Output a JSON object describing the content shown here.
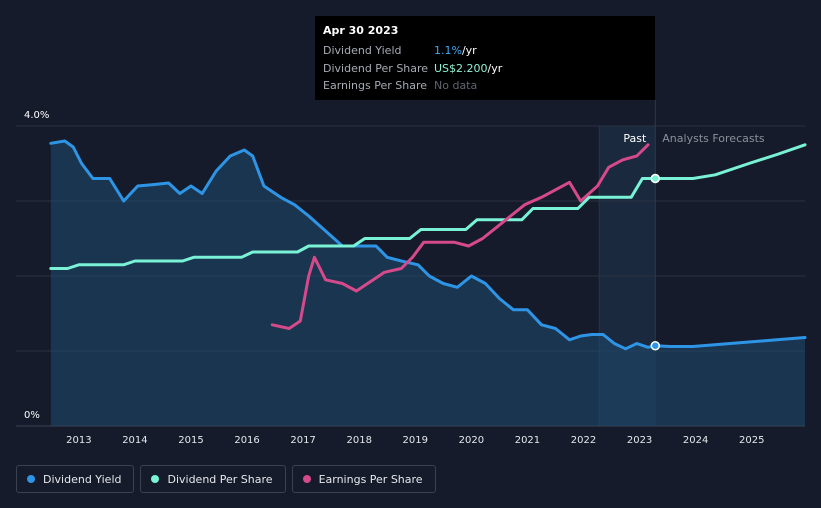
{
  "tooltip": {
    "date": "Apr 30 2023",
    "rows": [
      {
        "label": "Dividend Yield",
        "value": "1.1%",
        "unit": " /yr",
        "color": "#3fa9f5"
      },
      {
        "label": "Dividend Per Share",
        "value": "US$2.200",
        "unit": " /yr",
        "color": "#8ff0d4"
      },
      {
        "label": "Earnings Per Share",
        "value": "No data",
        "unit": "",
        "color": "#5f6470"
      }
    ]
  },
  "legend": [
    {
      "label": "Dividend Yield",
      "color": "#2e95e6"
    },
    {
      "label": "Dividend Per Share",
      "color": "#79f2d6"
    },
    {
      "label": "Earnings Per Share",
      "color": "#d6498a"
    }
  ],
  "chart_data": {
    "type": "line",
    "title": "",
    "xlabel": "",
    "ylabel": "",
    "x_range": [
      2012.5,
      2026.0
    ],
    "ylim": [
      0,
      4.0
    ],
    "y_tick_labels": [
      "0%",
      "4.0%"
    ],
    "x_ticks": [
      2013,
      2014,
      2015,
      2016,
      2017,
      2018,
      2019,
      2020,
      2021,
      2022,
      2023,
      2024,
      2025
    ],
    "past_label": "Past",
    "forecast_label": "Analysts Forecasts",
    "forecast_start": 2023.33,
    "past_band_start": 2022.33,
    "series": [
      {
        "name": "Dividend Yield",
        "color": "#2e95e6",
        "points": [
          [
            2012.55,
            3.77
          ],
          [
            2012.8,
            3.8
          ],
          [
            2012.95,
            3.72
          ],
          [
            2013.1,
            3.5
          ],
          [
            2013.3,
            3.3
          ],
          [
            2013.6,
            3.3
          ],
          [
            2013.85,
            3.0
          ],
          [
            2014.1,
            3.2
          ],
          [
            2014.4,
            3.22
          ],
          [
            2014.65,
            3.24
          ],
          [
            2014.85,
            3.1
          ],
          [
            2015.05,
            3.2
          ],
          [
            2015.25,
            3.1
          ],
          [
            2015.5,
            3.4
          ],
          [
            2015.75,
            3.6
          ],
          [
            2016.0,
            3.68
          ],
          [
            2016.15,
            3.6
          ],
          [
            2016.35,
            3.2
          ],
          [
            2016.65,
            3.05
          ],
          [
            2016.9,
            2.95
          ],
          [
            2017.15,
            2.8
          ],
          [
            2017.45,
            2.6
          ],
          [
            2017.75,
            2.4
          ],
          [
            2018.05,
            2.4
          ],
          [
            2018.35,
            2.4
          ],
          [
            2018.55,
            2.25
          ],
          [
            2018.8,
            2.2
          ],
          [
            2019.1,
            2.15
          ],
          [
            2019.3,
            2.0
          ],
          [
            2019.55,
            1.9
          ],
          [
            2019.8,
            1.85
          ],
          [
            2020.05,
            2.0
          ],
          [
            2020.3,
            1.9
          ],
          [
            2020.55,
            1.7
          ],
          [
            2020.8,
            1.55
          ],
          [
            2021.05,
            1.55
          ],
          [
            2021.3,
            1.35
          ],
          [
            2021.55,
            1.3
          ],
          [
            2021.8,
            1.15
          ],
          [
            2022.0,
            1.2
          ],
          [
            2022.2,
            1.22
          ],
          [
            2022.4,
            1.22
          ],
          [
            2022.6,
            1.1
          ],
          [
            2022.8,
            1.03
          ],
          [
            2023.0,
            1.1
          ],
          [
            2023.2,
            1.05
          ],
          [
            2023.33,
            1.07
          ],
          [
            2023.6,
            1.06
          ],
          [
            2024.0,
            1.06
          ],
          [
            2024.5,
            1.09
          ],
          [
            2025.0,
            1.12
          ],
          [
            2025.5,
            1.15
          ],
          [
            2026.0,
            1.18
          ]
        ]
      },
      {
        "name": "Dividend Per Share",
        "color": "#79f2d6",
        "points": [
          [
            2012.55,
            2.1
          ],
          [
            2012.85,
            2.1
          ],
          [
            2013.05,
            2.15
          ],
          [
            2013.85,
            2.15
          ],
          [
            2014.05,
            2.2
          ],
          [
            2014.9,
            2.2
          ],
          [
            2015.1,
            2.25
          ],
          [
            2015.95,
            2.25
          ],
          [
            2016.15,
            2.32
          ],
          [
            2016.95,
            2.32
          ],
          [
            2017.15,
            2.4
          ],
          [
            2017.95,
            2.4
          ],
          [
            2018.15,
            2.5
          ],
          [
            2018.95,
            2.5
          ],
          [
            2019.15,
            2.62
          ],
          [
            2019.95,
            2.62
          ],
          [
            2020.15,
            2.75
          ],
          [
            2020.95,
            2.75
          ],
          [
            2021.15,
            2.9
          ],
          [
            2021.95,
            2.9
          ],
          [
            2022.15,
            3.05
          ],
          [
            2022.9,
            3.05
          ],
          [
            2023.1,
            3.3
          ],
          [
            2023.33,
            3.3
          ],
          [
            2024.0,
            3.3
          ],
          [
            2024.4,
            3.35
          ],
          [
            2025.0,
            3.5
          ],
          [
            2025.5,
            3.62
          ],
          [
            2026.0,
            3.75
          ]
        ]
      },
      {
        "name": "Earnings Per Share",
        "color": "#d6498a",
        "points": [
          [
            2016.5,
            1.35
          ],
          [
            2016.8,
            1.3
          ],
          [
            2017.0,
            1.4
          ],
          [
            2017.15,
            2.0
          ],
          [
            2017.25,
            2.25
          ],
          [
            2017.45,
            1.95
          ],
          [
            2017.75,
            1.9
          ],
          [
            2018.0,
            1.8
          ],
          [
            2018.2,
            1.9
          ],
          [
            2018.5,
            2.05
          ],
          [
            2018.8,
            2.1
          ],
          [
            2019.0,
            2.25
          ],
          [
            2019.2,
            2.45
          ],
          [
            2019.45,
            2.45
          ],
          [
            2019.75,
            2.45
          ],
          [
            2020.0,
            2.4
          ],
          [
            2020.25,
            2.5
          ],
          [
            2020.5,
            2.65
          ],
          [
            2020.75,
            2.8
          ],
          [
            2021.0,
            2.95
          ],
          [
            2021.3,
            3.05
          ],
          [
            2021.55,
            3.15
          ],
          [
            2021.8,
            3.25
          ],
          [
            2022.0,
            3.0
          ],
          [
            2022.3,
            3.2
          ],
          [
            2022.5,
            3.45
          ],
          [
            2022.75,
            3.55
          ],
          [
            2023.0,
            3.6
          ],
          [
            2023.2,
            3.75
          ]
        ]
      }
    ],
    "markers": [
      {
        "series": "Dividend Yield",
        "x": 2023.33,
        "y": 1.07
      },
      {
        "series": "Dividend Per Share",
        "x": 2023.33,
        "y": 3.3
      }
    ]
  }
}
